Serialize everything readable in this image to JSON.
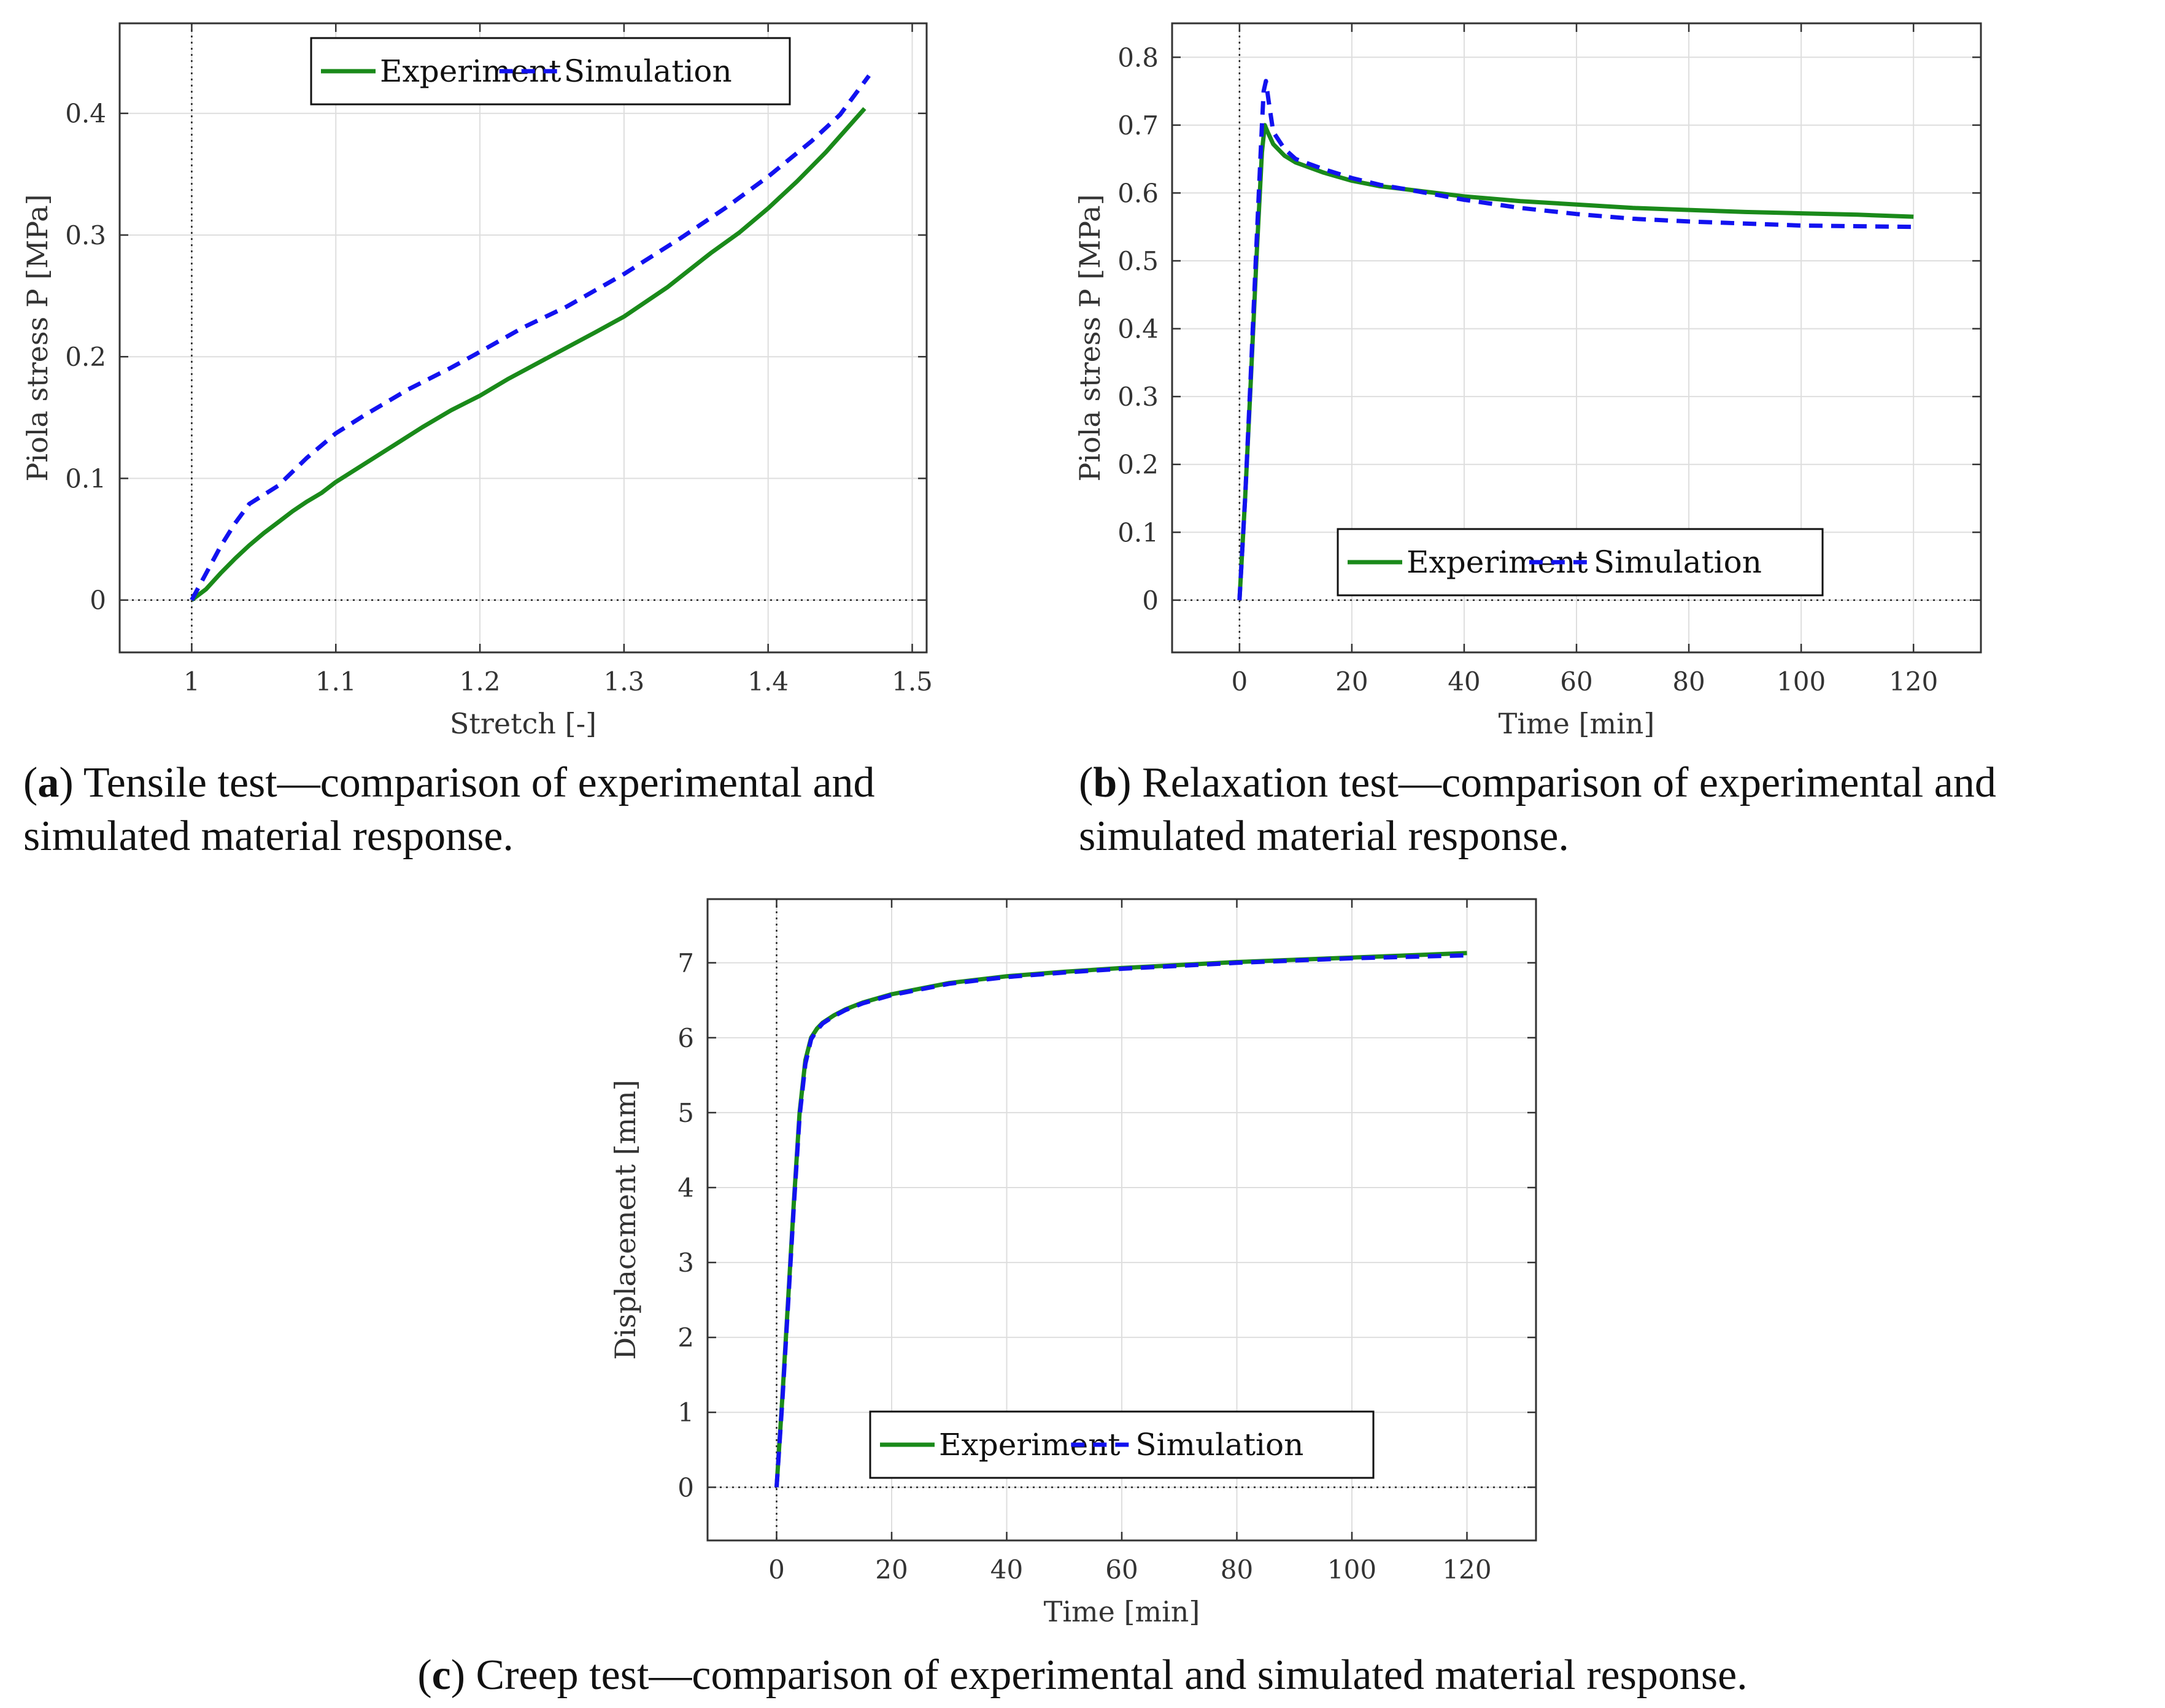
{
  "colors": {
    "experiment": "#1a8a1a",
    "simulation": "#1212f0",
    "grid": "#dedede",
    "axis": "#333333"
  },
  "chart_data": [
    {
      "id": "a",
      "type": "line",
      "xlabel": "Stretch [-]",
      "ylabel": "Piola stress P [MPa]",
      "xlim": [
        0.95,
        1.51
      ],
      "ylim": [
        -0.043,
        0.474
      ],
      "xticks": [
        1,
        1.1,
        1.2,
        1.3,
        1.4,
        1.5
      ],
      "xtick_labels": [
        "1",
        "1.1",
        "1.2",
        "1.3",
        "1.4",
        "1.5"
      ],
      "yticks": [
        0,
        0.1,
        0.2,
        0.3,
        0.4
      ],
      "ytick_labels": [
        "0",
        "0.1",
        "0.2",
        "0.3",
        "0.4"
      ],
      "zero_lines": {
        "x": 1,
        "y": 0
      },
      "legend_position": "top-center",
      "series": [
        {
          "name": "Experiment",
          "style": "solid",
          "x": [
            1.0,
            1.01,
            1.02,
            1.03,
            1.04,
            1.05,
            1.06,
            1.07,
            1.08,
            1.09,
            1.1,
            1.12,
            1.14,
            1.16,
            1.18,
            1.2,
            1.22,
            1.25,
            1.28,
            1.3,
            1.33,
            1.36,
            1.38,
            1.4,
            1.42,
            1.44,
            1.467
          ],
          "y": [
            0,
            0.009,
            0.022,
            0.034,
            0.045,
            0.055,
            0.064,
            0.073,
            0.081,
            0.088,
            0.097,
            0.112,
            0.127,
            0.142,
            0.156,
            0.168,
            0.182,
            0.201,
            0.22,
            0.233,
            0.257,
            0.285,
            0.302,
            0.322,
            0.344,
            0.368,
            0.404
          ]
        },
        {
          "name": "Simulation",
          "style": "dashed",
          "x": [
            1.0,
            1.01,
            1.02,
            1.03,
            1.04,
            1.06,
            1.08,
            1.1,
            1.12,
            1.15,
            1.18,
            1.2,
            1.23,
            1.26,
            1.3,
            1.34,
            1.37,
            1.4,
            1.43,
            1.45,
            1.47
          ],
          "y": [
            0,
            0.022,
            0.044,
            0.063,
            0.079,
            0.094,
            0.117,
            0.137,
            0.152,
            0.173,
            0.191,
            0.204,
            0.224,
            0.241,
            0.268,
            0.298,
            0.322,
            0.348,
            0.377,
            0.399,
            0.431
          ]
        }
      ],
      "caption_label": "a",
      "caption_text": ") Tensile test—comparison of experimental and simulated material response."
    },
    {
      "id": "b",
      "type": "line",
      "xlabel": "Time [min]",
      "ylabel": "Piola stress P [MPa]",
      "xlim": [
        -12,
        132
      ],
      "ylim": [
        -0.077,
        0.85
      ],
      "xticks": [
        0,
        20,
        40,
        60,
        80,
        100,
        120
      ],
      "xtick_labels": [
        "0",
        "20",
        "40",
        "60",
        "80",
        "100",
        "120"
      ],
      "yticks": [
        0,
        0.1,
        0.2,
        0.3,
        0.4,
        0.5,
        0.6,
        0.7,
        0.8
      ],
      "ytick_labels": [
        "0",
        "0.1",
        "0.2",
        "0.3",
        "0.4",
        "0.5",
        "0.6",
        "0.7",
        "0.8"
      ],
      "zero_lines": {
        "x": 0,
        "y": 0
      },
      "legend_position": "bottom-center",
      "series": [
        {
          "name": "Experiment",
          "style": "solid",
          "x": [
            0,
            1,
            2,
            3,
            4,
            4.5,
            5,
            6,
            8,
            10,
            15,
            20,
            25,
            30,
            40,
            50,
            60,
            70,
            80,
            90,
            100,
            110,
            120
          ],
          "y": [
            0,
            0.15,
            0.32,
            0.5,
            0.66,
            0.7,
            0.69,
            0.672,
            0.655,
            0.645,
            0.63,
            0.618,
            0.61,
            0.605,
            0.595,
            0.588,
            0.583,
            0.578,
            0.575,
            0.572,
            0.57,
            0.568,
            0.565
          ]
        },
        {
          "name": "Simulation",
          "style": "dashed",
          "x": [
            0,
            1,
            2,
            3,
            4,
            4.3,
            4.7,
            5.2,
            6,
            8,
            10,
            15,
            20,
            25,
            30,
            40,
            50,
            60,
            70,
            80,
            90,
            100,
            110,
            120
          ],
          "y": [
            0,
            0.15,
            0.33,
            0.52,
            0.7,
            0.75,
            0.765,
            0.735,
            0.69,
            0.665,
            0.65,
            0.635,
            0.622,
            0.612,
            0.605,
            0.59,
            0.578,
            0.569,
            0.562,
            0.558,
            0.555,
            0.552,
            0.551,
            0.55
          ]
        }
      ],
      "caption_label": "b",
      "caption_text": ") Relaxation test—comparison of experimental and simulated material response."
    },
    {
      "id": "c",
      "type": "line",
      "xlabel": "Time [min]",
      "ylabel": "Displacement [mm]",
      "xlim": [
        -12,
        132
      ],
      "ylim": [
        -0.71,
        7.85
      ],
      "xticks": [
        0,
        20,
        40,
        60,
        80,
        100,
        120
      ],
      "xtick_labels": [
        "0",
        "20",
        "40",
        "60",
        "80",
        "100",
        "120"
      ],
      "yticks": [
        0,
        1,
        2,
        3,
        4,
        5,
        6,
        7
      ],
      "ytick_labels": [
        "0",
        "1",
        "2",
        "3",
        "4",
        "5",
        "6",
        "7"
      ],
      "zero_lines": {
        "x": 0,
        "y": 0
      },
      "legend_position": "bottom-center",
      "series": [
        {
          "name": "Experiment",
          "style": "solid",
          "x": [
            0,
            1,
            2,
            3,
            4,
            5,
            6,
            7,
            8,
            10,
            12,
            15,
            20,
            30,
            40,
            50,
            60,
            70,
            80,
            90,
            100,
            110,
            120
          ],
          "y": [
            0,
            1.2,
            2.5,
            3.8,
            5.0,
            5.7,
            6.0,
            6.12,
            6.2,
            6.3,
            6.38,
            6.47,
            6.58,
            6.73,
            6.82,
            6.88,
            6.93,
            6.97,
            7.01,
            7.04,
            7.07,
            7.1,
            7.13
          ]
        },
        {
          "name": "Simulation",
          "style": "dashed",
          "x": [
            0,
            1,
            2,
            3,
            4,
            5,
            6,
            7,
            8,
            10,
            12,
            15,
            20,
            30,
            40,
            50,
            60,
            70,
            80,
            90,
            100,
            110,
            120
          ],
          "y": [
            0,
            1.15,
            2.45,
            3.75,
            4.95,
            5.65,
            5.98,
            6.1,
            6.19,
            6.29,
            6.37,
            6.46,
            6.57,
            6.72,
            6.81,
            6.87,
            6.92,
            6.96,
            7.0,
            7.03,
            7.06,
            7.08,
            7.1
          ]
        }
      ],
      "caption_label": "c",
      "caption_text": ") Creep test—comparison of experimental and simulated material response."
    }
  ]
}
